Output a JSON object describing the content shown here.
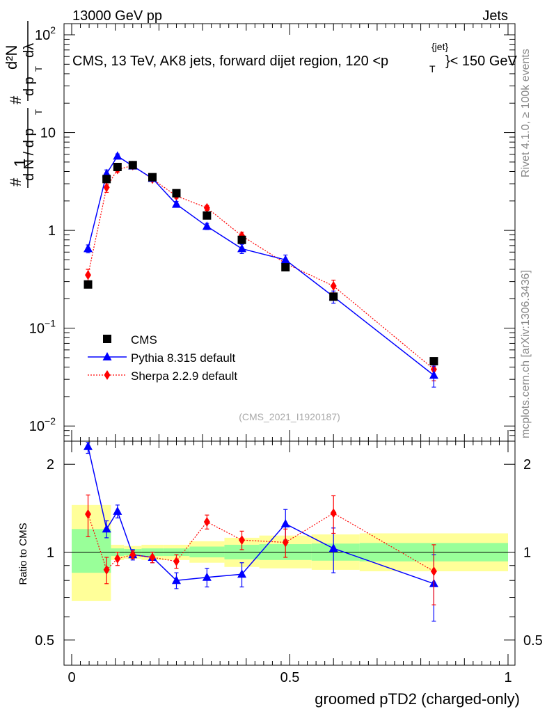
{
  "header": {
    "left": "13000 GeV pp",
    "right": "Jets",
    "title_main": "CMS, 13 TeV, AK8 jets, forward dijet region, 120 <p",
    "title_sup": "{jet}",
    "title_sub": "T",
    "title_end": "}< 150 GeV",
    "side_rivet": "Rivet 4.1.0, ≥ 100k events",
    "side_mcplots": "mcplots.cern.ch [arXiv:1306.3436]",
    "analysis_id": "(CMS_2021_I1920187)"
  },
  "chart_data": [
    {
      "type": "scatter",
      "panel": "main",
      "yscale": "log",
      "xlim": [
        0,
        1
      ],
      "ylim": [
        0.007,
        130
      ],
      "ylabel": "1/dN/dpT · d²N/dpT dλ",
      "yticks": [
        {
          "value": 0.01,
          "label": "10",
          "sup": "−2"
        },
        {
          "value": 0.1,
          "label": "10",
          "sup": "−1"
        },
        {
          "value": 1,
          "label": "1",
          "sup": ""
        },
        {
          "value": 10,
          "label": "10",
          "sup": ""
        },
        {
          "value": 100,
          "label": "10",
          "sup": "2"
        }
      ],
      "x": [
        0.0375,
        0.08,
        0.105,
        0.14,
        0.185,
        0.24,
        0.31,
        0.39,
        0.49,
        0.6,
        0.83
      ],
      "series": [
        {
          "name": "CMS",
          "color": "#000000",
          "marker": "square",
          "line": "none",
          "values": [
            0.28,
            3.35,
            4.45,
            4.65,
            3.5,
            2.4,
            1.42,
            0.8,
            0.42,
            0.21,
            0.046
          ]
        },
        {
          "name": "Pythia 8.315 default",
          "color": "#0000ff",
          "marker": "triangle",
          "line": "solid",
          "values": [
            0.65,
            3.8,
            5.75,
            4.55,
            3.4,
            1.85,
            1.1,
            0.65,
            0.5,
            0.21,
            0.033
          ],
          "errors": [
            0.06,
            0.35,
            0.3,
            0.2,
            0.15,
            0.12,
            0.08,
            0.07,
            0.06,
            0.03,
            0.008
          ]
        },
        {
          "name": "Sherpa 2.2.9 default",
          "color": "#ff0000",
          "marker": "diamond",
          "line": "dotted",
          "values": [
            0.35,
            2.75,
            4.2,
            4.6,
            3.35,
            2.25,
            1.7,
            0.88,
            0.46,
            0.27,
            0.038
          ],
          "errors": [
            0.05,
            0.3,
            0.25,
            0.2,
            0.15,
            0.12,
            0.1,
            0.08,
            0.05,
            0.04,
            0.009
          ]
        }
      ],
      "legend": {
        "position": "lower-left",
        "entries": [
          "CMS",
          "Pythia 8.315 default",
          "Sherpa 2.2.9 default"
        ]
      }
    },
    {
      "type": "scatter",
      "panel": "ratio",
      "yscale": "log",
      "xlim": [
        0,
        1
      ],
      "ylim": [
        0.41,
        2.4
      ],
      "ylabel": "Ratio to CMS",
      "xlabel": "groomed pTD2 (charged-only)",
      "xticks": [
        {
          "value": 0,
          "label": "0"
        },
        {
          "value": 0.5,
          "label": "0.5"
        },
        {
          "value": 1,
          "label": "1"
        }
      ],
      "yticks": [
        {
          "value": 0.5,
          "label": "0.5"
        },
        {
          "value": 1,
          "label": "1"
        },
        {
          "value": 2,
          "label": "2"
        }
      ],
      "bands": [
        {
          "x0": 0.0,
          "x1": 0.09,
          "yellow": [
            0.68,
            1.45
          ],
          "green": [
            0.85,
            1.2
          ]
        },
        {
          "x0": 0.09,
          "x1": 0.12,
          "yellow": [
            0.94,
            1.06
          ],
          "green": [
            0.97,
            1.03
          ]
        },
        {
          "x0": 0.12,
          "x1": 0.16,
          "yellow": [
            0.95,
            1.05
          ],
          "green": [
            0.975,
            1.025
          ]
        },
        {
          "x0": 0.16,
          "x1": 0.21,
          "yellow": [
            0.94,
            1.06
          ],
          "green": [
            0.97,
            1.03
          ]
        },
        {
          "x0": 0.21,
          "x1": 0.27,
          "yellow": [
            0.94,
            1.06
          ],
          "green": [
            0.97,
            1.03
          ]
        },
        {
          "x0": 0.27,
          "x1": 0.35,
          "yellow": [
            0.92,
            1.09
          ],
          "green": [
            0.96,
            1.045
          ]
        },
        {
          "x0": 0.35,
          "x1": 0.43,
          "yellow": [
            0.89,
            1.12
          ],
          "green": [
            0.945,
            1.06
          ]
        },
        {
          "x0": 0.43,
          "x1": 0.55,
          "yellow": [
            0.88,
            1.14
          ],
          "green": [
            0.94,
            1.065
          ]
        },
        {
          "x0": 0.55,
          "x1": 0.66,
          "yellow": [
            0.87,
            1.15
          ],
          "green": [
            0.935,
            1.07
          ]
        },
        {
          "x0": 0.66,
          "x1": 1.0,
          "yellow": [
            0.86,
            1.16
          ],
          "green": [
            0.93,
            1.075
          ]
        }
      ],
      "series": [
        {
          "name": "Pythia 8.315 default",
          "color": "#0000ff",
          "marker": "triangle",
          "line": "solid",
          "values": [
            2.3,
            1.2,
            1.38,
            0.98,
            0.96,
            0.8,
            0.82,
            0.84,
            1.25,
            1.03,
            0.78
          ],
          "errors": [
            0.12,
            0.08,
            0.07,
            0.04,
            0.04,
            0.05,
            0.06,
            0.08,
            0.15,
            0.18,
            0.2
          ]
        },
        {
          "name": "Sherpa 2.2.9 default",
          "color": "#ff0000",
          "marker": "diamond",
          "line": "dotted",
          "values": [
            1.35,
            0.87,
            0.95,
            0.98,
            0.96,
            0.93,
            1.27,
            1.1,
            1.08,
            1.36,
            0.86
          ],
          "errors": [
            0.22,
            0.09,
            0.05,
            0.03,
            0.04,
            0.05,
            0.07,
            0.08,
            0.12,
            0.2,
            0.2
          ]
        }
      ]
    }
  ]
}
